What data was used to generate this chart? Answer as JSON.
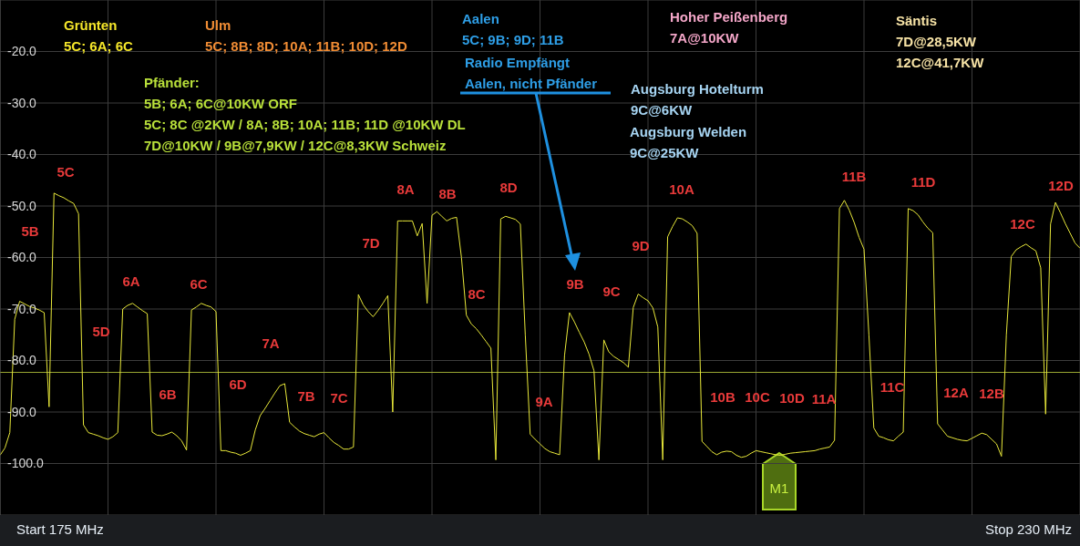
{
  "chart_data": {
    "type": "line",
    "categories": [
      null,
      null,
      null,
      null,
      null,
      null,
      null,
      null,
      null,
      null,
      null,
      null,
      null,
      null,
      null,
      null,
      null,
      null,
      null,
      null,
      null,
      null,
      null,
      null,
      null,
      null,
      null,
      null,
      null,
      null,
      null,
      null,
      null,
      null,
      null,
      null,
      null,
      null,
      null,
      null,
      null,
      null,
      null,
      null,
      null,
      null,
      null,
      null,
      null,
      null,
      null,
      null,
      null,
      null,
      null,
      null,
      null,
      null,
      null,
      null,
      null,
      null,
      null,
      null,
      null,
      null,
      null,
      null,
      null,
      null,
      null,
      null,
      null,
      null,
      null,
      null,
      null,
      null,
      null,
      null,
      null,
      null,
      null,
      null,
      null,
      null,
      null,
      null,
      null,
      null,
      null,
      null,
      null,
      null,
      null,
      null,
      null,
      null,
      null,
      null,
      null,
      null,
      null,
      null,
      null,
      null,
      null,
      null,
      null,
      null,
      null,
      null,
      null,
      null,
      null,
      null,
      null,
      null,
      null,
      null,
      null,
      null,
      null,
      null,
      null,
      null,
      null,
      null,
      null,
      null,
      null,
      null,
      null,
      null,
      null,
      null,
      null,
      null,
      null,
      null,
      null,
      null,
      null,
      null,
      null,
      null,
      null,
      null,
      null,
      null,
      null,
      null,
      null,
      null,
      null,
      null,
      null,
      null,
      null,
      null,
      null,
      null,
      null,
      null,
      null,
      null,
      null,
      null,
      null,
      null,
      null,
      null,
      null,
      null,
      null,
      null,
      null,
      null,
      null,
      null,
      null,
      null,
      null,
      null,
      null,
      null,
      null,
      null,
      null,
      null,
      null,
      null,
      null,
      null,
      null,
      null,
      null,
      null,
      null,
      null,
      null,
      null,
      null,
      null,
      null,
      null,
      null,
      null,
      null,
      null,
      null,
      null,
      null,
      null,
      null,
      null,
      null,
      null,
      null,
      null,
      null
    ],
    "ylim": [
      -110,
      -10
    ],
    "yticks": [
      {
        "value": -20,
        "label": "-20.0"
      },
      {
        "value": -30,
        "label": "-30.0"
      },
      {
        "value": -40,
        "label": "-40.0"
      },
      {
        "value": -50,
        "label": "-50.0"
      },
      {
        "value": -60,
        "label": "-60.0"
      },
      {
        "value": -70,
        "label": "-70.0"
      },
      {
        "value": -80,
        "label": "-80.0"
      },
      {
        "value": -90,
        "label": "-90.0"
      },
      {
        "value": -100,
        "label": "-100.0"
      }
    ],
    "tick_labels": "y",
    "grid": true,
    "marker": "none",
    "line_style": "solid",
    "ref_lines": [
      {
        "axis": "y",
        "value": -82.3,
        "color": "#9aa832"
      }
    ],
    "series": [
      {
        "color": "#e8e83a",
        "values": [
          -98.4,
          -97,
          -94,
          -72,
          -68.5,
          -69,
          -69.5,
          -69.8,
          -70.2,
          -70.7,
          -89,
          -47.5,
          -48,
          -48.4,
          -49,
          -49.5,
          -51.5,
          -92.5,
          -94,
          -94.3,
          -94.6,
          -95,
          -95.3,
          -94.8,
          -94,
          -70,
          -69.3,
          -68.9,
          -69.6,
          -70.3,
          -70.9,
          -93.9,
          -94.5,
          -94.6,
          -94.3,
          -93.9,
          -94.6,
          -95.6,
          -97.4,
          -70.2,
          -69.6,
          -68.9,
          -69.3,
          -69.6,
          -70.5,
          -97.5,
          -97.5,
          -97.8,
          -98,
          -98.4,
          -98,
          -97.5,
          -93.5,
          -90.7,
          -89.3,
          -87.8,
          -86.3,
          -84.9,
          -84.5,
          -92,
          -92.9,
          -93.7,
          -94.2,
          -94.5,
          -94.8,
          -94.3,
          -94,
          -95,
          -95.9,
          -96.5,
          -97.2,
          -97.2,
          -96.8,
          -67.2,
          -69.2,
          -70.5,
          -71.5,
          -70.3,
          -68.9,
          -67.4,
          -90,
          -52.9,
          -52.9,
          -52.9,
          -52.9,
          -55.8,
          -53.4,
          -68.9,
          -51.8,
          -51.1,
          -52,
          -52.9,
          -52.4,
          -52.2,
          -60,
          -71.2,
          -72.9,
          -73.8,
          -75,
          -76.3,
          -77.6,
          -99.3,
          -52.5,
          -52,
          -52.3,
          -52.6,
          -53.5,
          -75,
          -94.3,
          -95.3,
          -96.2,
          -97.1,
          -97.7,
          -98,
          -98.3,
          -79,
          -70.7,
          -72.5,
          -74.5,
          -76.4,
          -78.8,
          -82,
          -99.3,
          -76,
          -78.3,
          -79.2,
          -79.8,
          -80.4,
          -81.3,
          -69.7,
          -67.1,
          -67.8,
          -68.4,
          -69.8,
          -73.5,
          -99.3,
          -56,
          -54,
          -52.3,
          -52.5,
          -53.1,
          -53.8,
          -55.3,
          -95.7,
          -96.7,
          -97.7,
          -98.3,
          -97.8,
          -97.6,
          -97.7,
          -98.4,
          -98.8,
          -98.6,
          -98,
          -97.5,
          -97.7,
          -97.9,
          -98.1,
          -98.3,
          -98.4,
          -98.2,
          -98,
          -97.9,
          -97.8,
          -97.7,
          -97.6,
          -97.5,
          -97.2,
          -97,
          -96.8,
          -95.5,
          -50.5,
          -48.9,
          -50.8,
          -53.2,
          -56.1,
          -58.4,
          -75,
          -93.1,
          -94.7,
          -95,
          -95.4,
          -95.6,
          -94.7,
          -93.9,
          -50.5,
          -50.9,
          -51.7,
          -53.1,
          -54.3,
          -55.2,
          -92.3,
          -93.5,
          -94.7,
          -95,
          -95.3,
          -95.5,
          -95.6,
          -95.1,
          -94.6,
          -94.1,
          -94.4,
          -95.3,
          -96.2,
          -98.6,
          -75,
          -59.8,
          -58.5,
          -57.9,
          -57.4,
          -58.1,
          -58.7,
          -62,
          -90.4,
          -53.5,
          -49.3,
          -51.3,
          -53.4,
          -55.3,
          -57.2,
          -58.2
        ]
      }
    ],
    "annotations": [
      "Grünten\n5C; 6A; 6C",
      "Ulm\n5C; 8B; 8D; 10A; 11B; 10D; 12D",
      "Pfänder:\n5B; 6A; 6C@10KW ORF\n5C; 8C @2KW / 8A; 8B; 10A; 11B; 11D @10KW DL\n7D@10KW / 9B@7,9KW / 12C@8,3KW Schweiz",
      "Aalen\n5C; 9B; 9D; 11B",
      "Radio Empfängt\nAalen, nicht Pfänder",
      "Hoher Peißenberg\n7A@10KW",
      "Säntis\n7D@28,5KW\n12C@41,7KW",
      "Augsburg Hotelturm\n9C@6KW",
      "Augsburg Welden\n9C@25KW",
      "Start 175 MHz",
      "Stop 230 MHz",
      "M1",
      "5C",
      "5B",
      "6A",
      "5D",
      "6C",
      "6B",
      "6D",
      "7A",
      "7B",
      "7C",
      "7D",
      "8A",
      "8B",
      "8D",
      "8C",
      "9A",
      "9B",
      "9C",
      "9D",
      "10A",
      "10B",
      "10C",
      "10D",
      "11A",
      "11B",
      "11C",
      "11D",
      "12A",
      "12B",
      "12C",
      "12D"
    ]
  }
}
